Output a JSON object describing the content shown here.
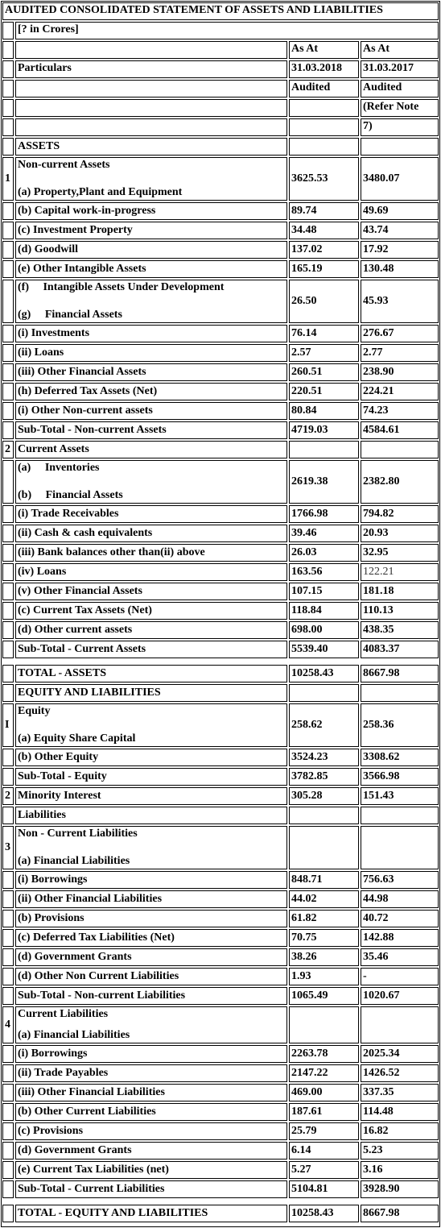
{
  "title": "AUDITED CONSOLIDATED STATEMENT OF ASSETS AND LIABILITIES",
  "unit": "[? in Crores]",
  "header": {
    "col1_line1": "As At",
    "col2_line1": "As At",
    "particulars": "Particulars",
    "col1_date": "31.03.2018",
    "col2_date": "31.03.2017",
    "col1_status": "Audited",
    "col2_status": "Audited",
    "col2_note_1": "(Refer Note",
    "col2_note_2": "7)"
  },
  "rows": [
    {
      "num": "",
      "label": "ASSETS",
      "v1": "",
      "v2": ""
    },
    {
      "num": "1",
      "label": "Non-current Assets",
      "v1": "",
      "v2": ""
    },
    {
      "num": "",
      "label": "(a) Property,Plant and Equipment",
      "v1": "3625.53",
      "v2": "3480.07"
    },
    {
      "num": "",
      "label": "(b) Capital work-in-progress",
      "v1": "89.74",
      "v2": "49.69"
    },
    {
      "num": "",
      "label": "(c) Investment Property",
      "v1": "34.48",
      "v2": "43.74"
    },
    {
      "num": "",
      "label": "(d) Goodwill",
      "v1": "137.02",
      "v2": "17.92"
    },
    {
      "num": "",
      "label": "(e) Other Intangible Assets",
      "v1": "165.19",
      "v2": "130.48"
    },
    {
      "num": "",
      "label": "(f)     Intangible Assets Under Development",
      "v1": "26.50",
      "v2": "45.93"
    },
    {
      "num": "",
      "label": "(g)     Financial Assets",
      "v1": "",
      "v2": ""
    },
    {
      "num": "",
      "label": "(i) Investments",
      "v1": "76.14",
      "v2": "276.67"
    },
    {
      "num": "",
      "label": "(ii) Loans",
      "v1": "2.57",
      "v2": "2.77"
    },
    {
      "num": "",
      "label": "(iii) Other Financial Assets",
      "v1": "260.51",
      "v2": "238.90"
    },
    {
      "num": "",
      "label": "(h) Deferred Tax Assets (Net)",
      "v1": "220.51",
      "v2": "224.21"
    },
    {
      "num": "",
      "label": "(i) Other Non-current assets",
      "v1": "80.84",
      "v2": "74.23"
    },
    {
      "num": "",
      "label": "Sub-Total - Non-current Assets",
      "v1": "4719.03",
      "v2": "4584.61"
    },
    {
      "num": "2",
      "label": "Current Assets",
      "v1": "",
      "v2": ""
    },
    {
      "num": "",
      "label": "(a)     Inventories",
      "v1": "2619.38",
      "v2": "2382.80"
    },
    {
      "num": "",
      "label": "(b)     Financial Assets",
      "v1": "",
      "v2": ""
    },
    {
      "num": "",
      "label": "(i) Trade Receivables",
      "v1": "1766.98",
      "v2": "794.82"
    },
    {
      "num": "",
      "label": "(ii) Cash & cash equivalents",
      "v1": "39.46",
      "v2": "20.93"
    },
    {
      "num": "",
      "label": "(iii) Bank balances other than(ii) above",
      "v1": "26.03",
      "v2": "32.95"
    },
    {
      "num": "",
      "label": "(iv) Loans",
      "v1": "163.56",
      "v2": "122.21"
    },
    {
      "num": "",
      "label": "(v) Other Financial Assets",
      "v1": "107.15",
      "v2": "181.18"
    },
    {
      "num": "",
      "label": "(c) Current Tax Assets (Net)",
      "v1": "118.84",
      "v2": "110.13"
    },
    {
      "num": "",
      "label": "(d) Other current assets",
      "v1": "698.00",
      "v2": "438.35"
    },
    {
      "num": "",
      "label": "Sub-Total - Current Assets",
      "v1": "5539.40",
      "v2": "4083.37"
    },
    {
      "num": "",
      "label": "TOTAL - ASSETS",
      "v1": "10258.43",
      "v2": "8667.98"
    },
    {
      "num": "",
      "label": "EQUITY AND LIABILITIES",
      "v1": "",
      "v2": ""
    },
    {
      "num": "I",
      "label": "Equity",
      "v1": "",
      "v2": ""
    },
    {
      "num": "",
      "label": "(a) Equity Share Capital",
      "v1": "258.62",
      "v2": "258.36"
    },
    {
      "num": "",
      "label": "(b) Other Equity",
      "v1": "3524.23",
      "v2": "3308.62"
    },
    {
      "num": "",
      "label": "Sub-Total - Equity",
      "v1": "3782.85",
      "v2": "3566.98"
    },
    {
      "num": "2",
      "label": "Minority Interest",
      "v1": "305.28",
      "v2": "151.43"
    },
    {
      "num": "",
      "label": "Liabilities",
      "v1": "",
      "v2": ""
    },
    {
      "num": "3",
      "label": "Non - Current Liabilities",
      "v1": "",
      "v2": ""
    },
    {
      "num": "",
      "label": "(a) Financial Liabilities",
      "v1": "",
      "v2": ""
    },
    {
      "num": "",
      "label": "(i) Borrowings",
      "v1": "848.71",
      "v2": "756.63"
    },
    {
      "num": "",
      "label": "(ii) Other Financial Liabilities",
      "v1": "44.02",
      "v2": "44.98"
    },
    {
      "num": "",
      "label": "(b) Provisions",
      "v1": "61.82",
      "v2": "40.72"
    },
    {
      "num": "",
      "label": "(c) Deferred Tax Liabilities (Net)",
      "v1": "70.75",
      "v2": "142.88"
    },
    {
      "num": "",
      "label": "(d) Government Grants",
      "v1": "38.26",
      "v2": "35.46"
    },
    {
      "num": "",
      "label": "(d) Other Non Current Liabilities",
      "v1": "1.93",
      "v2": "-"
    },
    {
      "num": "",
      "label": "Sub-Total - Non-current Liabilities",
      "v1": "1065.49",
      "v2": "1020.67"
    },
    {
      "num": "4",
      "label": "Current Liabilities",
      "v1": "",
      "v2": ""
    },
    {
      "num": "",
      "label": "(a) Financial Liabilities",
      "v1": "",
      "v2": ""
    },
    {
      "num": "",
      "label": "(i) Borrowings",
      "v1": "2263.78",
      "v2": "2025.34"
    },
    {
      "num": "",
      "label": "(ii) Trade Payables",
      "v1": "2147.22",
      "v2": "1426.52"
    },
    {
      "num": "",
      "label": "(iii) Other Financial Liabilities",
      "v1": "469.00",
      "v2": "337.35"
    },
    {
      "num": "",
      "label": "(b) Other Current Liabilities",
      "v1": "187.61",
      "v2": "114.48"
    },
    {
      "num": "",
      "label": "(c) Provisions",
      "v1": "25.79",
      "v2": "16.82"
    },
    {
      "num": "",
      "label": "(d) Government Grants",
      "v1": "6.14",
      "v2": "5.23"
    },
    {
      "num": "",
      "label": "(e) Current Tax Liabilities (net)",
      "v1": "5.27",
      "v2": "3.16"
    },
    {
      "num": "",
      "label": "Sub-Total - Current Liabilities",
      "v1": "5104.81",
      "v2": "3928.90"
    },
    {
      "num": "",
      "label": "TOTAL - EQUITY AND LIABILITIES",
      "v1": "10258.43",
      "v2": "8667.98"
    }
  ]
}
